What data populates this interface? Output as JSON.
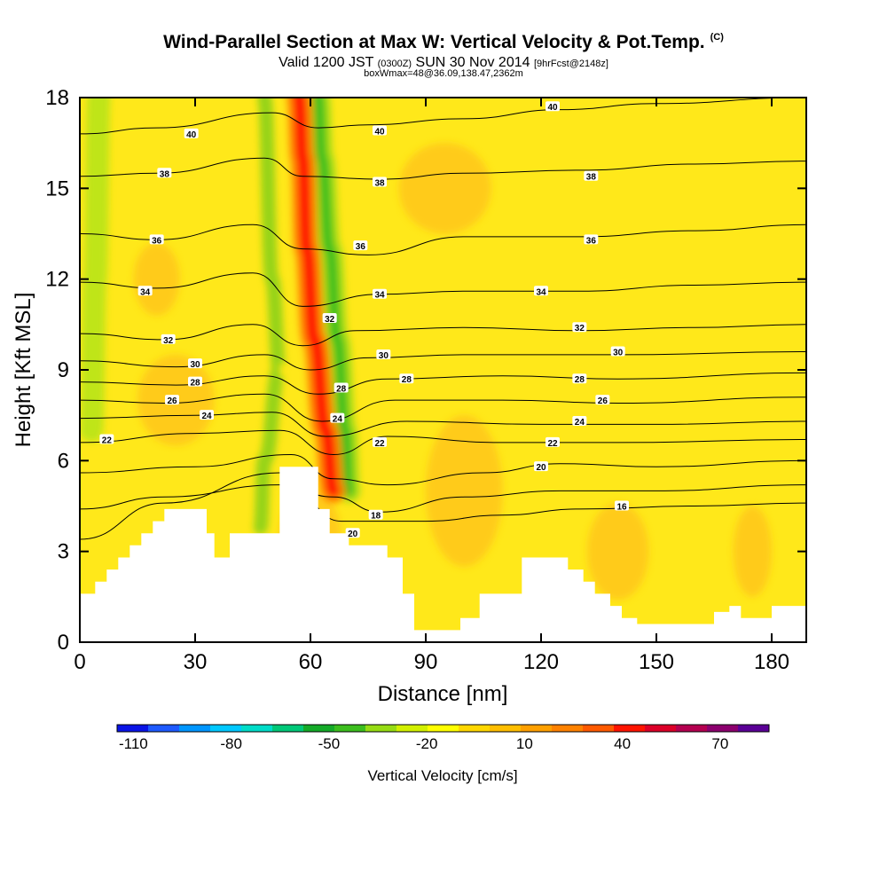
{
  "header": {
    "title": "Wind-Parallel Section at Max W: Vertical Velocity & Pot.Temp.",
    "copyright": "(C)",
    "valid_prefix": "Valid 1200 JST",
    "valid_utc": "(0300Z)",
    "valid_date": "SUN 30 Nov 2014",
    "forecast": "[9hrFcst@2148z]",
    "box_info": "boxWmax=48@36.09,138.47,2362m"
  },
  "chart_data": {
    "type": "heatmap",
    "xlabel": "Distance [nm]",
    "ylabel": "Height [Kft MSL]",
    "xlim": [
      0,
      189
    ],
    "ylim": [
      0,
      18
    ],
    "x_ticks": [
      "0",
      "30",
      "60",
      "90",
      "120",
      "150",
      "180"
    ],
    "y_ticks": [
      "0",
      "3",
      "6",
      "9",
      "12",
      "15",
      "18"
    ],
    "colorbar": {
      "label": "Vertical Velocity [cm/s]",
      "tick_labels": [
        "-110",
        "-80",
        "-50",
        "-20",
        "10",
        "40",
        "70"
      ],
      "range": [
        -115,
        85
      ],
      "colors": [
        "#0a14e6",
        "#1e5aff",
        "#0096ff",
        "#00c8ff",
        "#00dcc8",
        "#00c878",
        "#14aa28",
        "#3cbe1e",
        "#96dc14",
        "#d2f000",
        "#ffff00",
        "#ffd700",
        "#ffbe00",
        "#ffa000",
        "#ff8200",
        "#ff5a00",
        "#ff1400",
        "#dc0028",
        "#b40050",
        "#8c006e",
        "#5a0096"
      ]
    },
    "terrain_profile": [
      [
        0,
        1.6
      ],
      [
        4,
        1.6
      ],
      [
        4,
        2.0
      ],
      [
        7,
        2.0
      ],
      [
        7,
        2.4
      ],
      [
        10,
        2.4
      ],
      [
        10,
        2.8
      ],
      [
        13,
        2.8
      ],
      [
        13,
        3.2
      ],
      [
        16,
        3.2
      ],
      [
        16,
        3.6
      ],
      [
        19,
        3.6
      ],
      [
        19,
        4.0
      ],
      [
        22,
        4.0
      ],
      [
        22,
        4.4
      ],
      [
        33,
        4.4
      ],
      [
        33,
        3.6
      ],
      [
        35,
        3.6
      ],
      [
        35,
        2.8
      ],
      [
        39,
        2.8
      ],
      [
        39,
        3.6
      ],
      [
        52,
        3.6
      ],
      [
        52,
        5.8
      ],
      [
        62,
        5.8
      ],
      [
        62,
        4.4
      ],
      [
        65,
        4.4
      ],
      [
        65,
        3.6
      ],
      [
        70,
        3.6
      ],
      [
        70,
        3.2
      ],
      [
        80,
        3.2
      ],
      [
        80,
        2.8
      ],
      [
        84,
        2.8
      ],
      [
        84,
        1.6
      ],
      [
        87,
        1.6
      ],
      [
        87,
        0.4
      ],
      [
        99,
        0.4
      ],
      [
        99,
        0.8
      ],
      [
        104,
        0.8
      ],
      [
        104,
        1.6
      ],
      [
        115,
        1.6
      ],
      [
        115,
        2.8
      ],
      [
        127,
        2.8
      ],
      [
        127,
        2.4
      ],
      [
        131,
        2.4
      ],
      [
        131,
        2.0
      ],
      [
        134,
        2.0
      ],
      [
        134,
        1.6
      ],
      [
        138,
        1.6
      ],
      [
        138,
        1.2
      ],
      [
        141,
        1.2
      ],
      [
        141,
        0.8
      ],
      [
        145,
        0.8
      ],
      [
        145,
        0.6
      ],
      [
        165,
        0.6
      ],
      [
        165,
        1.0
      ],
      [
        169,
        1.0
      ],
      [
        169,
        1.2
      ],
      [
        172,
        1.2
      ],
      [
        172,
        0.8
      ],
      [
        180,
        0.8
      ],
      [
        180,
        1.2
      ],
      [
        189,
        1.2
      ]
    ],
    "updraft_band": [
      [
        66,
        5.0
      ],
      [
        64,
        7.0
      ],
      [
        61,
        10.0
      ],
      [
        59,
        13.0
      ],
      [
        58,
        16.0
      ],
      [
        57,
        18.0
      ]
    ],
    "downdraft_band": [
      [
        70,
        5.0
      ],
      [
        69,
        7.0
      ],
      [
        67,
        10.0
      ],
      [
        65,
        13.0
      ],
      [
        63,
        16.0
      ],
      [
        62,
        18.0
      ]
    ],
    "secondary_downdraft": [
      [
        47,
        3.8
      ],
      [
        48,
        6.0
      ],
      [
        52,
        9.0
      ],
      [
        50,
        12.0
      ],
      [
        48,
        18.0
      ]
    ],
    "west_downdraft": [
      [
        3,
        7.0
      ],
      [
        4,
        12.0
      ],
      [
        5,
        18.0
      ]
    ],
    "isentropes": [
      {
        "theta": 40,
        "points": [
          [
            0,
            16.8
          ],
          [
            20,
            17.0
          ],
          [
            50,
            17.5
          ],
          [
            62,
            17.0
          ],
          [
            75,
            17.1
          ],
          [
            100,
            17.3
          ],
          [
            125,
            17.6
          ],
          [
            150,
            17.8
          ],
          [
            189,
            18.0
          ]
        ]
      },
      {
        "theta": 38,
        "points": [
          [
            0,
            15.4
          ],
          [
            20,
            15.5
          ],
          [
            48,
            16.0
          ],
          [
            58,
            15.4
          ],
          [
            78,
            15.3
          ],
          [
            100,
            15.5
          ],
          [
            130,
            15.6
          ],
          [
            160,
            15.8
          ],
          [
            189,
            15.9
          ]
        ]
      },
      {
        "theta": 36,
        "points": [
          [
            0,
            13.5
          ],
          [
            20,
            13.3
          ],
          [
            45,
            13.8
          ],
          [
            58,
            13.0
          ],
          [
            75,
            12.8
          ],
          [
            100,
            13.4
          ],
          [
            130,
            13.4
          ],
          [
            160,
            13.6
          ],
          [
            189,
            13.8
          ]
        ]
      },
      {
        "theta": 34,
        "points": [
          [
            0,
            11.9
          ],
          [
            20,
            11.7
          ],
          [
            45,
            12.2
          ],
          [
            58,
            11.1
          ],
          [
            78,
            11.5
          ],
          [
            100,
            11.6
          ],
          [
            130,
            11.6
          ],
          [
            160,
            11.8
          ],
          [
            189,
            11.9
          ]
        ]
      },
      {
        "theta": 32,
        "points": [
          [
            0,
            10.2
          ],
          [
            22,
            10.0
          ],
          [
            45,
            10.5
          ],
          [
            58,
            9.8
          ],
          [
            72,
            10.3
          ],
          [
            100,
            10.4
          ],
          [
            130,
            10.3
          ],
          [
            160,
            10.4
          ],
          [
            189,
            10.5
          ]
        ]
      },
      {
        "theta": 30,
        "points": [
          [
            0,
            9.3
          ],
          [
            25,
            9.1
          ],
          [
            48,
            9.5
          ],
          [
            60,
            9.0
          ],
          [
            75,
            9.4
          ],
          [
            100,
            9.5
          ],
          [
            140,
            9.5
          ],
          [
            189,
            9.6
          ]
        ]
      },
      {
        "theta": 28,
        "points": [
          [
            0,
            8.6
          ],
          [
            25,
            8.5
          ],
          [
            48,
            8.8
          ],
          [
            62,
            8.2
          ],
          [
            80,
            8.7
          ],
          [
            110,
            8.8
          ],
          [
            140,
            8.7
          ],
          [
            189,
            8.9
          ]
        ]
      },
      {
        "theta": 26,
        "points": [
          [
            0,
            8.0
          ],
          [
            22,
            7.9
          ],
          [
            48,
            8.2
          ],
          [
            63,
            7.3
          ],
          [
            82,
            8.0
          ],
          [
            110,
            8.0
          ],
          [
            140,
            7.9
          ],
          [
            189,
            8.1
          ]
        ]
      },
      {
        "theta": 24,
        "points": [
          [
            0,
            7.4
          ],
          [
            30,
            7.5
          ],
          [
            50,
            7.6
          ],
          [
            64,
            6.8
          ],
          [
            85,
            7.3
          ],
          [
            120,
            7.2
          ],
          [
            150,
            7.2
          ],
          [
            189,
            7.3
          ]
        ]
      },
      {
        "theta": 22,
        "points": [
          [
            0,
            6.6
          ],
          [
            30,
            6.9
          ],
          [
            52,
            7.0
          ],
          [
            66,
            6.2
          ],
          [
            80,
            6.8
          ],
          [
            110,
            6.6
          ],
          [
            140,
            6.6
          ],
          [
            189,
            6.7
          ]
        ]
      },
      {
        "theta": 20,
        "points": [
          [
            0,
            5.6
          ],
          [
            30,
            5.8
          ],
          [
            55,
            6.2
          ],
          [
            66,
            5.4
          ],
          [
            80,
            5.2
          ],
          [
            105,
            5.6
          ],
          [
            125,
            5.9
          ],
          [
            150,
            5.8
          ],
          [
            189,
            6.0
          ]
        ]
      },
      {
        "theta": 18,
        "points": [
          [
            0,
            4.4
          ],
          [
            22,
            4.8
          ],
          [
            52,
            5.2
          ],
          [
            66,
            4.8
          ],
          [
            78,
            4.3
          ],
          [
            100,
            4.8
          ],
          [
            125,
            5.0
          ],
          [
            150,
            5.0
          ],
          [
            189,
            5.2
          ]
        ]
      },
      {
        "theta": 16,
        "points": [
          [
            0,
            3.4
          ],
          [
            22,
            4.6
          ],
          [
            52,
            5.6
          ],
          [
            68,
            4.0
          ],
          [
            90,
            4.0
          ],
          [
            110,
            4.2
          ],
          [
            130,
            4.4
          ],
          [
            160,
            4.5
          ],
          [
            189,
            4.6
          ]
        ]
      }
    ],
    "contour_labels": [
      {
        "text": "40",
        "x": 29,
        "y": 16.8
      },
      {
        "text": "38",
        "x": 22,
        "y": 15.5
      },
      {
        "text": "36",
        "x": 20,
        "y": 13.3
      },
      {
        "text": "34",
        "x": 17,
        "y": 11.6
      },
      {
        "text": "32",
        "x": 23,
        "y": 10.0
      },
      {
        "text": "30",
        "x": 30,
        "y": 9.2
      },
      {
        "text": "28",
        "x": 30,
        "y": 8.6
      },
      {
        "text": "26",
        "x": 24,
        "y": 8.0
      },
      {
        "text": "24",
        "x": 33,
        "y": 7.5
      },
      {
        "text": "22",
        "x": 7,
        "y": 6.7
      },
      {
        "text": "40",
        "x": 78,
        "y": 16.9
      },
      {
        "text": "38",
        "x": 78,
        "y": 15.2
      },
      {
        "text": "36",
        "x": 73,
        "y": 13.1
      },
      {
        "text": "34",
        "x": 78,
        "y": 11.5
      },
      {
        "text": "32",
        "x": 65,
        "y": 10.7
      },
      {
        "text": "30",
        "x": 79,
        "y": 9.5
      },
      {
        "text": "28",
        "x": 68,
        "y": 8.4
      },
      {
        "text": "24",
        "x": 67,
        "y": 7.4
      },
      {
        "text": "22",
        "x": 78,
        "y": 6.6
      },
      {
        "text": "28",
        "x": 85,
        "y": 8.7
      },
      {
        "text": "18",
        "x": 77,
        "y": 4.2
      },
      {
        "text": "20",
        "x": 71,
        "y": 3.6
      },
      {
        "text": "40",
        "x": 123,
        "y": 17.7
      },
      {
        "text": "38",
        "x": 133,
        "y": 15.4
      },
      {
        "text": "36",
        "x": 133,
        "y": 13.3
      },
      {
        "text": "34",
        "x": 120,
        "y": 11.6
      },
      {
        "text": "32",
        "x": 130,
        "y": 10.4
      },
      {
        "text": "30",
        "x": 140,
        "y": 9.6
      },
      {
        "text": "28",
        "x": 130,
        "y": 8.7
      },
      {
        "text": "26",
        "x": 136,
        "y": 8.0
      },
      {
        "text": "24",
        "x": 130,
        "y": 7.3
      },
      {
        "text": "22",
        "x": 123,
        "y": 6.6
      },
      {
        "text": "20",
        "x": 120,
        "y": 5.8
      },
      {
        "text": "16",
        "x": 141,
        "y": 4.5
      }
    ]
  }
}
